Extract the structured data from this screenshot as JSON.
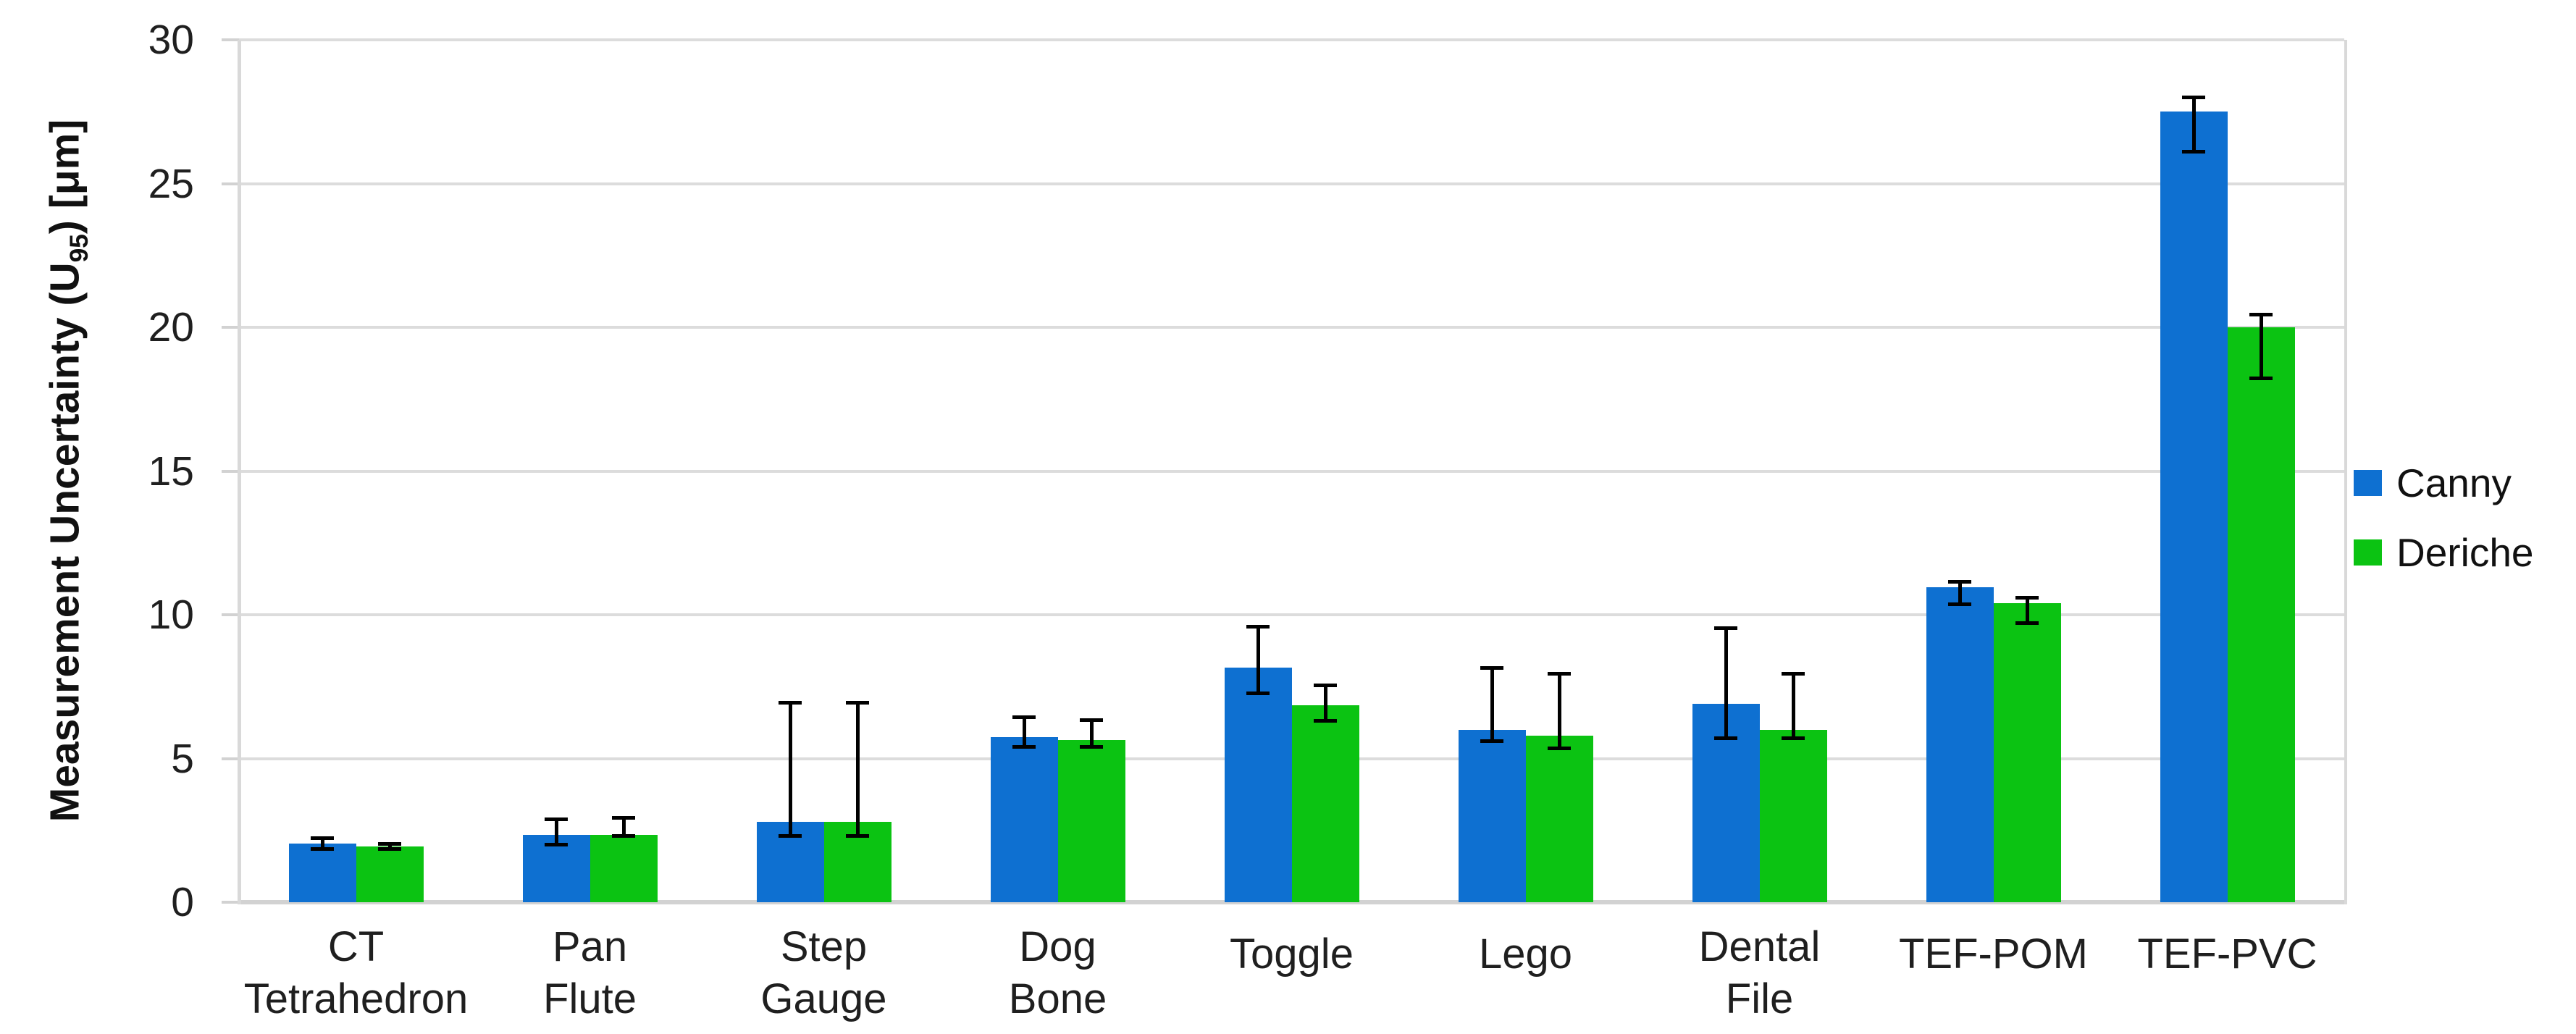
{
  "chart_data": {
    "type": "bar",
    "title": "",
    "ylabel": "Measurement Uncertainty (U95) [μm]",
    "ylabel_parts": {
      "prefix": "Measurement Uncertainty (U",
      "sub": "95",
      "suffix": ") [μm]"
    },
    "xlabel": "",
    "categories": [
      "CT Tetrahedron",
      "Pan Flute",
      "Step Gauge",
      "Dog Bone",
      "Toggle",
      "Lego",
      "Dental File",
      "TEF-POM",
      "TEF-PVC"
    ],
    "category_label_lines": [
      [
        "CT",
        "Tetrahedron"
      ],
      [
        "Pan",
        "Flute"
      ],
      [
        "Step",
        "Gauge"
      ],
      [
        "Dog",
        "Bone"
      ],
      [
        "Toggle"
      ],
      [
        "Lego"
      ],
      [
        "Dental",
        "File"
      ],
      [
        "TEF-POM"
      ],
      [
        "TEF-PVC"
      ]
    ],
    "series": [
      {
        "name": "Canny",
        "color": "#0e70d1",
        "values": [
          2.05,
          2.35,
          2.8,
          5.75,
          8.15,
          6.0,
          6.9,
          10.95,
          27.5
        ],
        "error_high": [
          2.25,
          2.9,
          6.95,
          6.45,
          9.6,
          8.15,
          9.55,
          11.15,
          28.0
        ],
        "error_low": [
          1.85,
          2.0,
          2.3,
          5.4,
          7.25,
          5.6,
          5.7,
          10.35,
          26.1
        ]
      },
      {
        "name": "Deriche",
        "color": "#0bc312",
        "values": [
          1.95,
          2.35,
          2.8,
          5.65,
          6.85,
          5.8,
          6.0,
          10.4,
          20.0
        ],
        "error_high": [
          2.05,
          2.95,
          6.95,
          6.35,
          7.55,
          7.95,
          7.95,
          10.6,
          20.45
        ],
        "error_low": [
          1.85,
          2.3,
          2.3,
          5.4,
          6.3,
          5.35,
          5.7,
          9.7,
          18.2
        ]
      }
    ],
    "ylim": [
      0,
      30
    ],
    "ytick_step": 5,
    "yticks": [
      "0",
      "5",
      "10",
      "15",
      "20",
      "25",
      "30"
    ],
    "grid": true,
    "error_bar_color": "#000000",
    "legend_position": "right"
  },
  "legend": {
    "items": [
      {
        "label": "Canny",
        "color": "#0e70d1"
      },
      {
        "label": "Deriche",
        "color": "#0bc312"
      }
    ]
  },
  "colors": {
    "gridline": "#dcdcdc",
    "baseline": "#d2d2d2",
    "axis_text": "#1f1f1f",
    "canny_blue": "#0e70d1",
    "deriche_green": "#0bc312"
  }
}
